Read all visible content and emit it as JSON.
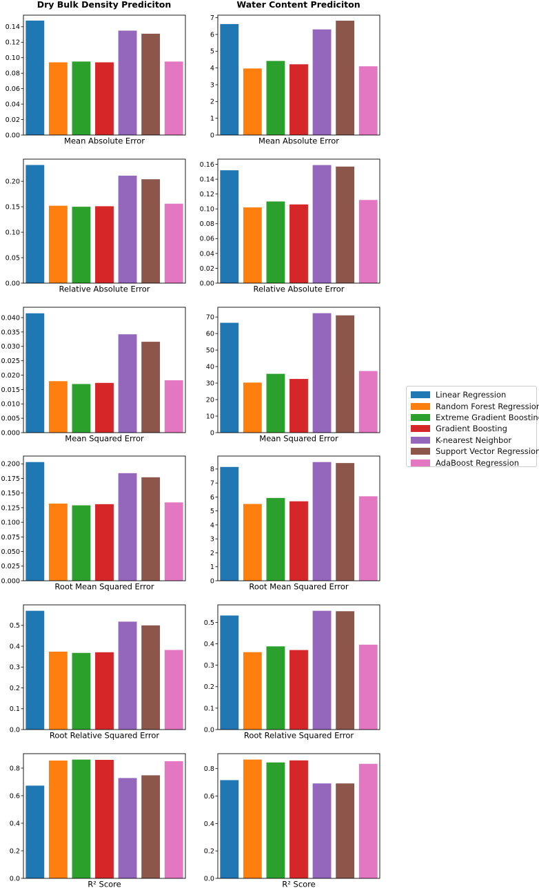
{
  "chart_data": {
    "type": "bar",
    "columns": [
      {
        "title": "Dry Bulk Density Prediciton"
      },
      {
        "title": "Water Content Prediciton"
      }
    ],
    "series": [
      {
        "name": "Linear Regression",
        "color": "#1f77b4"
      },
      {
        "name": "Random Forest Regression",
        "color": "#ff7f0e"
      },
      {
        "name": "Extreme Gradient Boosting",
        "color": "#2ca02c"
      },
      {
        "name": "Gradient Boosting",
        "color": "#d62728"
      },
      {
        "name": "K-nearest Neighbor",
        "color": "#9467bd"
      },
      {
        "name": "Support Vector Regression",
        "color": "#8c564b"
      },
      {
        "name": "AdaBoost Regression",
        "color": "#e377c2"
      }
    ],
    "panels": [
      {
        "xlabel": "Mean Absolute Error",
        "col": 0,
        "values": [
          0.148,
          0.094,
          0.095,
          0.094,
          0.135,
          0.131,
          0.095
        ],
        "ylim": [
          0,
          0.155
        ],
        "yticks": [
          0.0,
          0.02,
          0.04,
          0.06,
          0.08,
          0.1,
          0.12,
          0.14
        ],
        "yticklabels": [
          "0.00",
          "0.02",
          "0.04",
          "0.06",
          "0.08",
          "0.10",
          "0.12",
          "0.14"
        ]
      },
      {
        "xlabel": "Mean Absolute Error",
        "col": 1,
        "values": [
          6.62,
          3.97,
          4.42,
          4.22,
          6.3,
          6.82,
          4.1
        ],
        "ylim": [
          0,
          7.15
        ],
        "yticks": [
          0,
          1,
          2,
          3,
          4,
          5,
          6,
          7
        ],
        "yticklabels": [
          "0",
          "1",
          "2",
          "3",
          "4",
          "5",
          "6",
          "7"
        ]
      },
      {
        "xlabel": "Relative Absolute Error",
        "col": 0,
        "values": [
          0.232,
          0.152,
          0.15,
          0.151,
          0.211,
          0.204,
          0.156
        ],
        "ylim": [
          0,
          0.2435
        ],
        "yticks": [
          0.0,
          0.05,
          0.1,
          0.15,
          0.2
        ],
        "yticklabels": [
          "0.00",
          "0.05",
          "0.10",
          "0.15",
          "0.20"
        ]
      },
      {
        "xlabel": "Relative Absolute Error",
        "col": 1,
        "values": [
          0.152,
          0.102,
          0.11,
          0.106,
          0.159,
          0.157,
          0.112
        ],
        "ylim": [
          0,
          0.167
        ],
        "yticks": [
          0.0,
          0.02,
          0.04,
          0.06,
          0.08,
          0.1,
          0.12,
          0.14,
          0.16
        ],
        "yticklabels": [
          "0.00",
          "0.02",
          "0.04",
          "0.06",
          "0.08",
          "0.10",
          "0.12",
          "0.14",
          "0.16"
        ]
      },
      {
        "xlabel": "Mean Squared Error",
        "col": 0,
        "values": [
          0.0415,
          0.0179,
          0.0169,
          0.0173,
          0.0342,
          0.0316,
          0.0182
        ],
        "ylim": [
          0,
          0.0436
        ],
        "yticks": [
          0.0,
          0.005,
          0.01,
          0.015,
          0.02,
          0.025,
          0.03,
          0.035,
          0.04
        ],
        "yticklabels": [
          "0.000",
          "0.005",
          "0.010",
          "0.015",
          "0.020",
          "0.025",
          "0.030",
          "0.035",
          "0.040"
        ]
      },
      {
        "xlabel": "Mean Squared Error",
        "col": 1,
        "values": [
          66.5,
          30.3,
          35.6,
          32.5,
          72.3,
          71.0,
          37.3
        ],
        "ylim": [
          0,
          75.9
        ],
        "yticks": [
          0,
          10,
          20,
          30,
          40,
          50,
          60,
          70
        ],
        "yticklabels": [
          "0",
          "10",
          "20",
          "30",
          "40",
          "50",
          "60",
          "70"
        ]
      },
      {
        "xlabel": "Root Mean Squared Error",
        "col": 0,
        "values": [
          0.203,
          0.132,
          0.129,
          0.131,
          0.184,
          0.177,
          0.134
        ],
        "ylim": [
          0,
          0.2133
        ],
        "yticks": [
          0.0,
          0.025,
          0.05,
          0.075,
          0.1,
          0.125,
          0.15,
          0.175,
          0.2
        ],
        "yticklabels": [
          "0.000",
          "0.025",
          "0.050",
          "0.075",
          "0.100",
          "0.125",
          "0.150",
          "0.175",
          "0.200"
        ]
      },
      {
        "xlabel": "Root Mean Squared Error",
        "col": 1,
        "values": [
          8.15,
          5.5,
          5.93,
          5.69,
          8.5,
          8.43,
          6.05
        ],
        "ylim": [
          0,
          8.93
        ],
        "yticks": [
          0,
          1,
          2,
          3,
          4,
          5,
          6,
          7,
          8
        ],
        "yticklabels": [
          "0",
          "1",
          "2",
          "3",
          "4",
          "5",
          "6",
          "7",
          "8"
        ]
      },
      {
        "xlabel": "Root Relative Squared Error",
        "col": 0,
        "values": [
          0.57,
          0.374,
          0.368,
          0.371,
          0.518,
          0.5,
          0.382
        ],
        "ylim": [
          0,
          0.5985
        ],
        "yticks": [
          0.0,
          0.1,
          0.2,
          0.3,
          0.4,
          0.5
        ],
        "yticklabels": [
          "0.0",
          "0.1",
          "0.2",
          "0.3",
          "0.4",
          "0.5"
        ]
      },
      {
        "xlabel": "Root Relative Squared Error",
        "col": 1,
        "values": [
          0.532,
          0.361,
          0.388,
          0.371,
          0.554,
          0.552,
          0.396
        ],
        "ylim": [
          0,
          0.5817
        ],
        "yticks": [
          0.0,
          0.1,
          0.2,
          0.3,
          0.4,
          0.5
        ],
        "yticklabels": [
          "0.0",
          "0.1",
          "0.2",
          "0.3",
          "0.4",
          "0.5"
        ]
      },
      {
        "xlabel": "R² Score",
        "col": 0,
        "values": [
          0.673,
          0.855,
          0.862,
          0.86,
          0.728,
          0.748,
          0.85
        ],
        "ylim": [
          0,
          0.905
        ],
        "yticks": [
          0.0,
          0.2,
          0.4,
          0.6,
          0.8
        ],
        "yticklabels": [
          "0.0",
          "0.2",
          "0.4",
          "0.6",
          "0.8"
        ]
      },
      {
        "xlabel": "R² Score",
        "col": 1,
        "values": [
          0.716,
          0.866,
          0.845,
          0.86,
          0.692,
          0.692,
          0.835
        ],
        "ylim": [
          0,
          0.909
        ],
        "yticks": [
          0.0,
          0.2,
          0.4,
          0.6,
          0.8
        ],
        "yticklabels": [
          "0.0",
          "0.2",
          "0.4",
          "0.6",
          "0.8"
        ]
      }
    ]
  }
}
